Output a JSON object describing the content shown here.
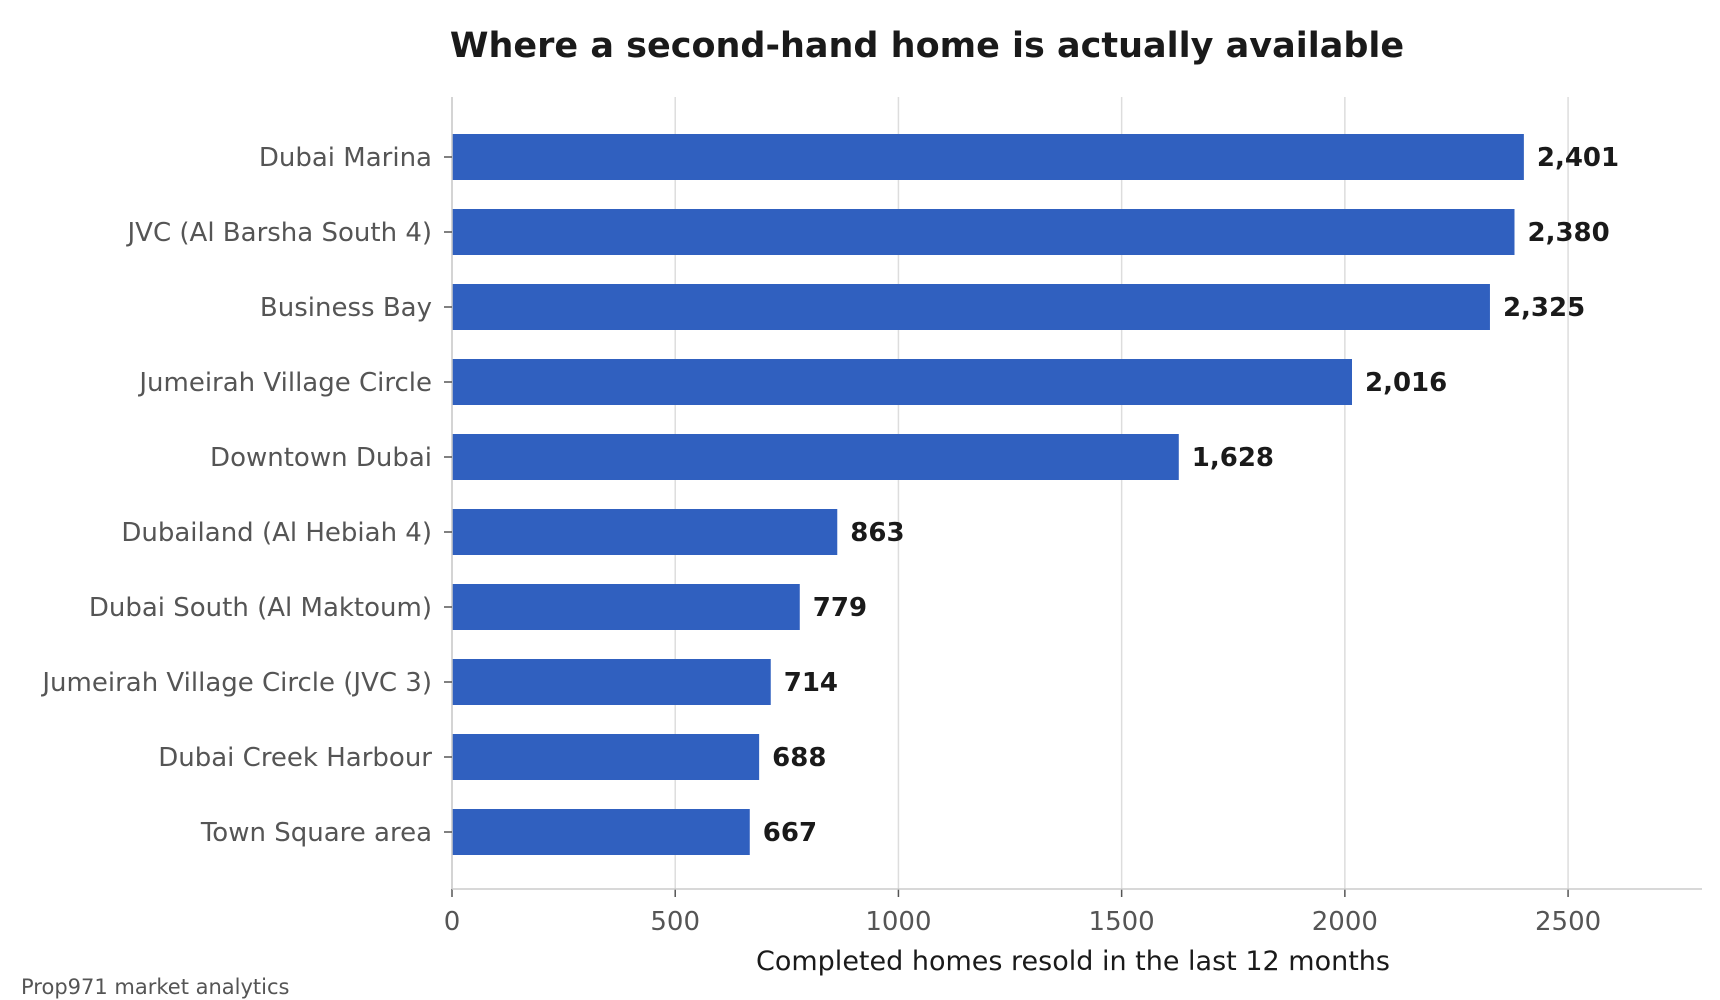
{
  "chart_data": {
    "type": "bar",
    "orientation": "horizontal",
    "title": "Where a second-hand home is actually available",
    "xlabel": "Completed homes resold in the last 12 months",
    "ylabel": "",
    "categories": [
      "Dubai Marina",
      "JVC (Al Barsha South 4)",
      "Business Bay",
      "Jumeirah Village Circle",
      "Downtown Dubai",
      "Dubailand (Al Hebiah 4)",
      "Dubai South (Al Maktoum)",
      "Jumeirah Village Circle (JVC 3)",
      "Dubai Creek Harbour",
      "Town Square area"
    ],
    "values": [
      2401,
      2380,
      2325,
      2016,
      1628,
      863,
      779,
      714,
      688,
      667
    ],
    "value_labels": [
      "2,401",
      "2,380",
      "2,325",
      "2,016",
      "1,628",
      "863",
      "779",
      "714",
      "688",
      "667"
    ],
    "xlim": [
      0,
      2800
    ],
    "xticks": [
      0,
      500,
      1000,
      1500,
      2000,
      2500
    ],
    "xtick_labels": [
      "0",
      "500",
      "1000",
      "1500",
      "2000",
      "2500"
    ],
    "grid": "vertical",
    "bar_color": "#3060bf"
  },
  "source_note": "Prop971 market analytics"
}
